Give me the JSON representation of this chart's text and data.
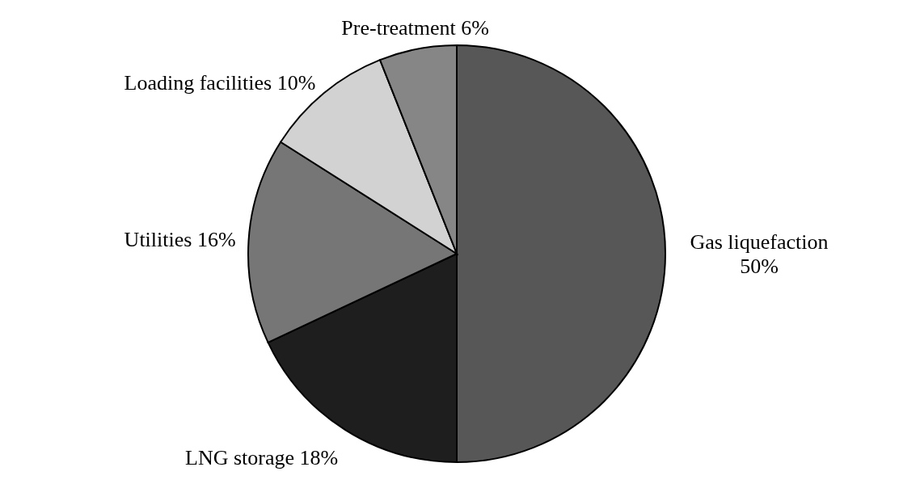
{
  "chart_data": {
    "type": "pie",
    "categories": [
      "Gas liquefaction",
      "LNG storage",
      "Utilities",
      "Loading facilities",
      "Pre-treatment"
    ],
    "values": [
      50,
      18,
      16,
      10,
      6
    ],
    "colors": [
      "#575757",
      "#1e1e1e",
      "#767676",
      "#d2d2d2",
      "#868686"
    ],
    "value_labels": [
      "50%",
      "18%",
      "16%",
      "10%",
      "6%"
    ]
  }
}
